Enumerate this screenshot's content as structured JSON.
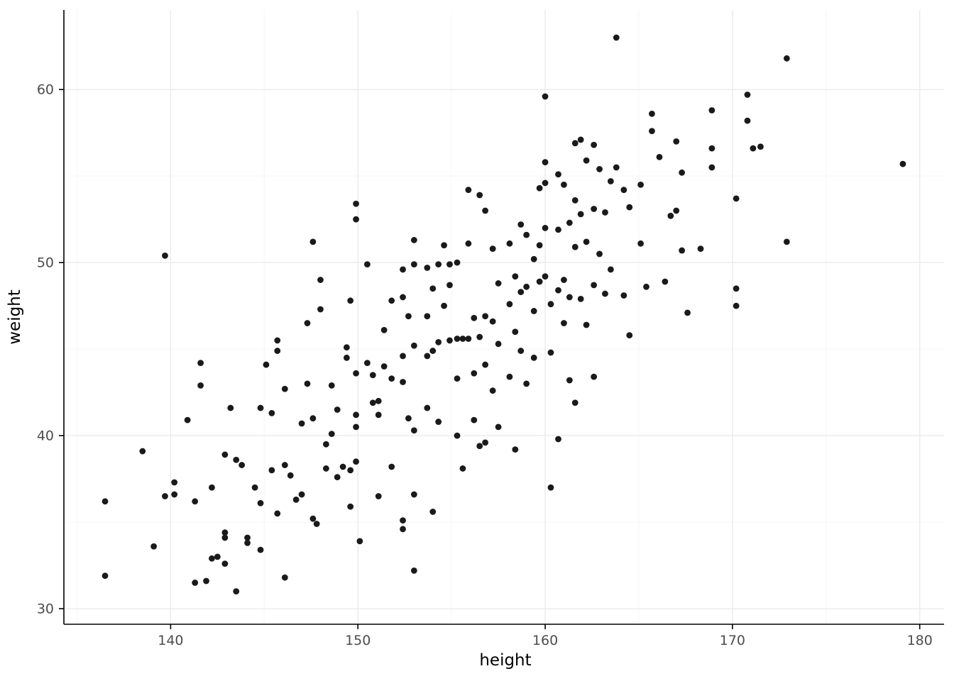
{
  "chart_data": {
    "type": "scatter",
    "title": "",
    "xlabel": "height",
    "ylabel": "weight",
    "x_range": [
      134.3,
      181.3
    ],
    "y_range": [
      29.1,
      64.6
    ],
    "x_ticks": [
      140,
      150,
      160,
      170,
      180
    ],
    "y_ticks": [
      30,
      40,
      50,
      60
    ],
    "x_minor_ticks": [
      135,
      145,
      155,
      165,
      175
    ],
    "y_minor_ticks": [
      35,
      45,
      55
    ],
    "grid": true,
    "legend": "none",
    "point_color": "#1a1a1a",
    "grid_major_color": "#ebebeb",
    "grid_minor_color": "#f6f6f6",
    "axis_line_color": "#000000",
    "tick_label_color": "#4d4d4d",
    "points": [
      [
        136.5,
        31.9
      ],
      [
        136.5,
        36.2
      ],
      [
        138.5,
        39.1
      ],
      [
        139.1,
        33.6
      ],
      [
        139.7,
        36.5
      ],
      [
        139.7,
        50.4
      ],
      [
        140.2,
        37.3
      ],
      [
        140.2,
        36.6
      ],
      [
        140.9,
        40.9
      ],
      [
        141.3,
        36.2
      ],
      [
        141.3,
        31.5
      ],
      [
        141.6,
        44.2
      ],
      [
        141.6,
        42.9
      ],
      [
        141.9,
        31.6
      ],
      [
        142.2,
        32.9
      ],
      [
        142.2,
        37.0
      ],
      [
        142.5,
        33.0
      ],
      [
        142.9,
        34.1
      ],
      [
        142.9,
        34.4
      ],
      [
        142.9,
        38.9
      ],
      [
        142.9,
        32.6
      ],
      [
        143.5,
        38.6
      ],
      [
        143.5,
        31.0
      ],
      [
        143.8,
        38.3
      ],
      [
        144.1,
        34.1
      ],
      [
        144.1,
        33.8
      ],
      [
        144.5,
        37.0
      ],
      [
        144.8,
        33.4
      ],
      [
        144.8,
        36.1
      ],
      [
        144.8,
        41.6
      ],
      [
        143.2,
        41.6
      ],
      [
        145.1,
        44.1
      ],
      [
        145.4,
        41.3
      ],
      [
        145.4,
        38.0
      ],
      [
        145.7,
        44.9
      ],
      [
        145.7,
        45.5
      ],
      [
        145.7,
        35.5
      ],
      [
        146.1,
        42.7
      ],
      [
        146.1,
        38.3
      ],
      [
        146.1,
        31.8
      ],
      [
        146.4,
        37.7
      ],
      [
        146.7,
        36.3
      ],
      [
        147.0,
        36.6
      ],
      [
        147.0,
        40.7
      ],
      [
        147.3,
        46.5
      ],
      [
        147.3,
        43.0
      ],
      [
        147.6,
        51.2
      ],
      [
        147.6,
        41.0
      ],
      [
        147.6,
        35.2
      ],
      [
        147.8,
        34.9
      ],
      [
        148.0,
        49.0
      ],
      [
        148.0,
        47.3
      ],
      [
        148.3,
        39.5
      ],
      [
        148.3,
        38.1
      ],
      [
        148.6,
        42.9
      ],
      [
        148.6,
        40.1
      ],
      [
        148.9,
        41.5
      ],
      [
        148.9,
        37.6
      ],
      [
        149.2,
        38.2
      ],
      [
        149.4,
        44.5
      ],
      [
        149.4,
        45.1
      ],
      [
        149.6,
        47.8
      ],
      [
        149.6,
        38.0
      ],
      [
        149.6,
        35.9
      ],
      [
        149.9,
        52.5
      ],
      [
        149.9,
        53.4
      ],
      [
        149.9,
        43.6
      ],
      [
        149.9,
        41.2
      ],
      [
        149.9,
        40.5
      ],
      [
        149.9,
        38.5
      ],
      [
        150.1,
        33.9
      ],
      [
        150.5,
        49.9
      ],
      [
        150.5,
        44.2
      ],
      [
        150.8,
        43.5
      ],
      [
        150.8,
        41.9
      ],
      [
        151.1,
        42.0
      ],
      [
        151.1,
        41.2
      ],
      [
        151.1,
        36.5
      ],
      [
        151.4,
        44.0
      ],
      [
        151.4,
        46.1
      ],
      [
        151.8,
        47.8
      ],
      [
        151.8,
        43.3
      ],
      [
        151.8,
        38.2
      ],
      [
        152.4,
        49.6
      ],
      [
        152.4,
        48.0
      ],
      [
        152.4,
        44.6
      ],
      [
        152.4,
        43.1
      ],
      [
        152.4,
        35.1
      ],
      [
        152.4,
        34.6
      ],
      [
        152.7,
        46.9
      ],
      [
        152.7,
        41.0
      ],
      [
        153.0,
        51.3
      ],
      [
        153.0,
        49.9
      ],
      [
        153.0,
        45.2
      ],
      [
        153.0,
        40.3
      ],
      [
        153.0,
        36.6
      ],
      [
        153.0,
        32.2
      ],
      [
        153.7,
        49.7
      ],
      [
        153.7,
        46.9
      ],
      [
        153.7,
        44.6
      ],
      [
        153.7,
        41.6
      ],
      [
        154.0,
        48.5
      ],
      [
        154.0,
        44.9
      ],
      [
        154.0,
        35.6
      ],
      [
        154.3,
        49.9
      ],
      [
        154.3,
        45.4
      ],
      [
        154.3,
        40.8
      ],
      [
        154.6,
        51.0
      ],
      [
        154.6,
        47.5
      ],
      [
        154.9,
        49.9
      ],
      [
        154.9,
        48.7
      ],
      [
        154.9,
        45.5
      ],
      [
        155.3,
        50.0
      ],
      [
        155.3,
        45.6
      ],
      [
        155.3,
        43.3
      ],
      [
        155.3,
        40.0
      ],
      [
        155.6,
        38.1
      ],
      [
        155.6,
        45.6
      ],
      [
        155.9,
        54.2
      ],
      [
        155.9,
        51.1
      ],
      [
        155.9,
        45.6
      ],
      [
        156.2,
        46.8
      ],
      [
        156.2,
        43.6
      ],
      [
        156.2,
        40.9
      ],
      [
        156.5,
        53.9
      ],
      [
        156.5,
        45.7
      ],
      [
        156.5,
        39.4
      ],
      [
        156.8,
        53.0
      ],
      [
        156.8,
        46.9
      ],
      [
        156.8,
        44.1
      ],
      [
        156.8,
        39.6
      ],
      [
        157.2,
        50.8
      ],
      [
        157.2,
        46.6
      ],
      [
        157.2,
        42.6
      ],
      [
        157.5,
        48.8
      ],
      [
        157.5,
        45.3
      ],
      [
        157.5,
        40.5
      ],
      [
        158.1,
        51.1
      ],
      [
        158.1,
        47.6
      ],
      [
        158.1,
        43.4
      ],
      [
        158.4,
        49.2
      ],
      [
        158.4,
        46.0
      ],
      [
        158.4,
        39.2
      ],
      [
        158.7,
        52.2
      ],
      [
        158.7,
        48.3
      ],
      [
        158.7,
        44.9
      ],
      [
        159.0,
        51.6
      ],
      [
        159.0,
        48.6
      ],
      [
        159.0,
        43.0
      ],
      [
        159.4,
        50.2
      ],
      [
        159.4,
        47.2
      ],
      [
        159.4,
        44.5
      ],
      [
        159.7,
        54.3
      ],
      [
        159.7,
        51.0
      ],
      [
        159.7,
        48.9
      ],
      [
        160.0,
        59.6
      ],
      [
        160.0,
        55.8
      ],
      [
        160.0,
        54.6
      ],
      [
        160.0,
        52.0
      ],
      [
        160.0,
        49.2
      ],
      [
        160.3,
        47.6
      ],
      [
        160.3,
        44.8
      ],
      [
        160.3,
        37.0
      ],
      [
        160.7,
        55.1
      ],
      [
        160.7,
        51.9
      ],
      [
        160.7,
        48.4
      ],
      [
        160.7,
        39.8
      ],
      [
        161.0,
        54.5
      ],
      [
        161.0,
        49.0
      ],
      [
        161.0,
        46.5
      ],
      [
        161.3,
        52.3
      ],
      [
        161.3,
        48.0
      ],
      [
        161.3,
        43.2
      ],
      [
        161.6,
        56.9
      ],
      [
        161.6,
        53.6
      ],
      [
        161.6,
        50.9
      ],
      [
        161.6,
        41.9
      ],
      [
        161.9,
        57.1
      ],
      [
        161.9,
        52.8
      ],
      [
        161.9,
        47.9
      ],
      [
        162.2,
        55.9
      ],
      [
        162.2,
        51.2
      ],
      [
        162.2,
        46.4
      ],
      [
        162.6,
        56.8
      ],
      [
        162.6,
        53.1
      ],
      [
        162.6,
        48.7
      ],
      [
        162.6,
        43.4
      ],
      [
        162.9,
        55.4
      ],
      [
        162.9,
        50.5
      ],
      [
        163.2,
        52.9
      ],
      [
        163.2,
        48.2
      ],
      [
        163.5,
        54.7
      ],
      [
        163.5,
        49.6
      ],
      [
        163.8,
        63.0
      ],
      [
        163.8,
        55.5
      ],
      [
        164.2,
        54.2
      ],
      [
        164.2,
        48.1
      ],
      [
        164.5,
        53.2
      ],
      [
        164.5,
        45.8
      ],
      [
        165.1,
        54.5
      ],
      [
        165.1,
        51.1
      ],
      [
        165.4,
        48.6
      ],
      [
        165.7,
        58.6
      ],
      [
        165.7,
        57.6
      ],
      [
        166.1,
        56.1
      ],
      [
        166.4,
        48.9
      ],
      [
        166.7,
        52.7
      ],
      [
        167.0,
        57.0
      ],
      [
        167.0,
        53.0
      ],
      [
        167.3,
        55.2
      ],
      [
        167.3,
        50.7
      ],
      [
        167.6,
        47.1
      ],
      [
        168.3,
        50.8
      ],
      [
        168.9,
        58.8
      ],
      [
        168.9,
        56.6
      ],
      [
        168.9,
        55.5
      ],
      [
        170.2,
        53.7
      ],
      [
        170.2,
        48.5
      ],
      [
        170.2,
        47.5
      ],
      [
        170.8,
        59.7
      ],
      [
        170.8,
        58.2
      ],
      [
        171.1,
        56.6
      ],
      [
        171.5,
        56.7
      ],
      [
        172.9,
        61.8
      ],
      [
        172.9,
        51.2
      ],
      [
        179.1,
        55.7
      ]
    ]
  }
}
